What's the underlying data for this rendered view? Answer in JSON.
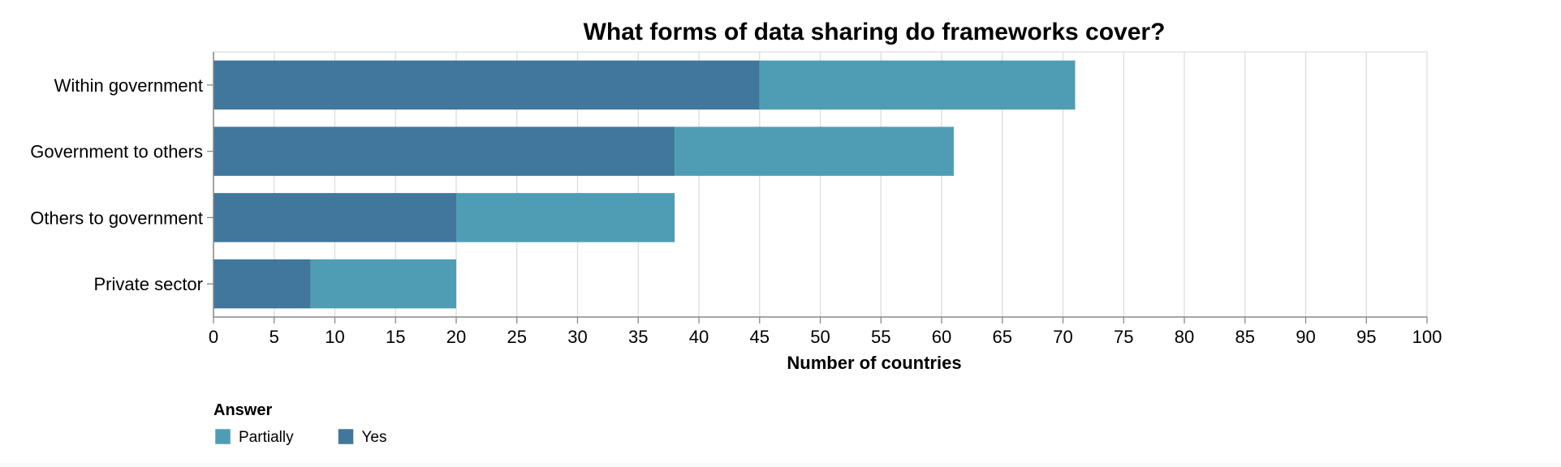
{
  "chart_data": {
    "type": "bar",
    "orientation": "horizontal",
    "stacked": true,
    "title": "What forms of data sharing do frameworks cover?",
    "xlabel": "Number of countries",
    "ylabel": "",
    "xlim": [
      0,
      100
    ],
    "xticks": [
      0,
      5,
      10,
      15,
      20,
      25,
      30,
      35,
      40,
      45,
      50,
      55,
      60,
      65,
      70,
      75,
      80,
      85,
      90,
      95,
      100
    ],
    "grid": true,
    "categories": [
      "Within government",
      "Government to others",
      "Others to government",
      "Private sector"
    ],
    "series": [
      {
        "name": "Yes",
        "color": "#41779c",
        "values": [
          45,
          38,
          20,
          8
        ]
      },
      {
        "name": "Partially",
        "color": "#4f9db4",
        "values": [
          26,
          23,
          18,
          12
        ]
      }
    ],
    "legend": {
      "title": "Answer",
      "placement": "bottom-left",
      "items": [
        {
          "label": "Partially",
          "color": "#4f9db4"
        },
        {
          "label": "Yes",
          "color": "#41779c"
        }
      ]
    }
  }
}
